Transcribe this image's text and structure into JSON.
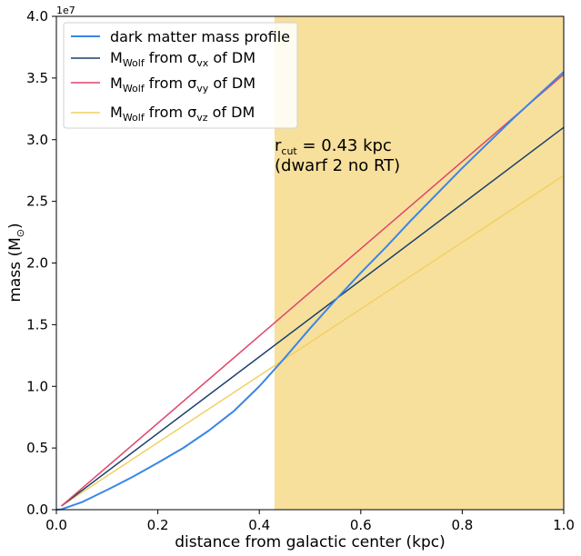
{
  "chart_data": {
    "type": "line",
    "xlabel": "distance from galactic center (kpc)",
    "ylabel": "mass (M",
    "ylabel_sub": "⊙",
    "ylabel_close": ")",
    "y_scale_label": "1e7",
    "xlim": [
      0.0,
      1.0
    ],
    "ylim": [
      0.0,
      40000000
    ],
    "x_ticks": [
      0.0,
      0.2,
      0.4,
      0.6,
      0.8,
      1.0
    ],
    "x_tick_labels": [
      "0.0",
      "0.2",
      "0.4",
      "0.6",
      "0.8",
      "1.0"
    ],
    "y_ticks": [
      0,
      5000000,
      10000000,
      15000000,
      20000000,
      25000000,
      30000000,
      35000000,
      40000000
    ],
    "y_tick_labels": [
      "0.0",
      "0.5",
      "1.0",
      "1.5",
      "2.0",
      "2.5",
      "3.0",
      "3.5",
      "4.0"
    ],
    "grid": false,
    "legend_position": "top-left",
    "shaded_region": {
      "x_from": 0.43,
      "x_to": 1.0,
      "color": "#f7e09c"
    },
    "annotation": {
      "line1_prefix": "r",
      "line1_sub": "cut",
      "line1_suffix": " = 0.43 kpc",
      "line2": "(dwarf 2 no RT)",
      "x": 0.43,
      "y": 31000000
    },
    "series": [
      {
        "name": "dark matter mass profile",
        "color": "#3a86e8",
        "width": 2,
        "x": [
          0.0,
          0.01,
          0.05,
          0.1,
          0.15,
          0.2,
          0.25,
          0.3,
          0.35,
          0.4,
          0.45,
          0.5,
          0.55,
          0.6,
          0.65,
          0.7,
          0.75,
          0.8,
          0.85,
          0.9,
          0.95,
          1.0
        ],
        "y": [
          0,
          30000,
          600000,
          1600000,
          2650000,
          3800000,
          5000000,
          6400000,
          8000000,
          10000000,
          12300000,
          14700000,
          17000000,
          19200000,
          21300000,
          23500000,
          25600000,
          27700000,
          29700000,
          31700000,
          33600000,
          35500000
        ]
      },
      {
        "name_prefix": "M",
        "name_sub": "Wolf",
        "name_mid": " from σ",
        "name_sub2": "vx",
        "name_suffix": " of DM",
        "color": "#1a3f6b",
        "width": 1.5,
        "x": [
          0.01,
          1.0
        ],
        "y": [
          300000,
          31000000
        ]
      },
      {
        "name_prefix": "M",
        "name_sub": "Wolf",
        "name_mid": " from σ",
        "name_sub2": "vy",
        "name_suffix": " of DM",
        "color": "#e0456a",
        "width": 1.5,
        "x": [
          0.01,
          1.0
        ],
        "y": [
          300000,
          35300000
        ]
      },
      {
        "name_prefix": "M",
        "name_sub": "Wolf",
        "name_mid": " from σ",
        "name_sub2": "vz",
        "name_suffix": " of DM",
        "color": "#f2d060",
        "width": 1.5,
        "x": [
          0.01,
          1.0
        ],
        "y": [
          300000,
          27100000
        ]
      }
    ]
  }
}
